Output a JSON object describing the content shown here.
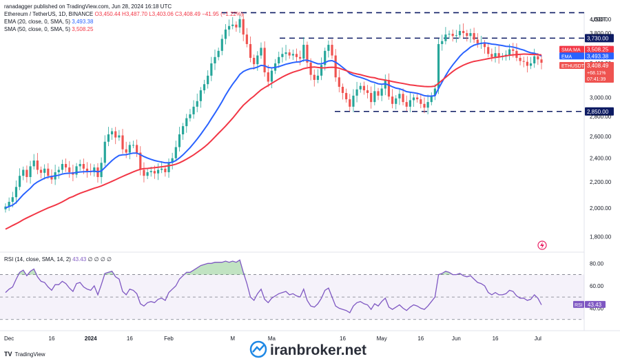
{
  "header": {
    "published": "ranadagger published on TradingView.com, Jun 28, 2024 16:18 UTC",
    "symbol": "Ethereum / TetherUS, 1D, BINANCE",
    "ohlc": "O3,450.44 H3,487.70 L3,403.06 C3,408.49 −41.95 (−1.22%)",
    "ema_label": "EMA (20, close, 0, SMA, 5)",
    "ema_value": "3,493.38",
    "sma_label": "SMA (50, close, 0, SMA, 5)",
    "sma_value": "3,508.25",
    "rsi_label": "RSI (14, close, SMA, 14, 2)",
    "rsi_value": "43.43",
    "rsi_extra": "∅ ∅ ∅ ∅"
  },
  "footer": {
    "tradingview": "TradingView",
    "watermark": "iranbroker.net"
  },
  "colors": {
    "up": "#26a69a",
    "down": "#ef5350",
    "ema": "#2962ff",
    "sma": "#f23645",
    "rsi": "#7e57c2",
    "level_line": "#0d1b63",
    "watermark_blue": "#1e88e5"
  },
  "chart_data": [
    {
      "type": "line",
      "title": "Ethereum / TetherUS, 1D, BINANCE",
      "currency": "USDT",
      "ylim": [
        1700,
        4100
      ],
      "y_scale": "log",
      "y_ticks": [
        "4,000.00",
        "3,800.00",
        "3,600.00",
        "3,400.00",
        "3,200.00",
        "3,000.00",
        "2,800.00",
        "2,600.00",
        "2,400.00",
        "2,200.00",
        "2,000.00",
        "1,800.00"
      ],
      "x_ticks": [
        "Dec",
        "16",
        "2024",
        "16",
        "Feb",
        "M",
        "Ma",
        "16",
        "May",
        "16",
        "Jun",
        "16",
        "Jul"
      ],
      "levels": [
        {
          "value": 4095,
          "label": ""
        },
        {
          "value": 3730,
          "label": "3,730.00"
        },
        {
          "value": 2850,
          "label": "2,850.00"
        }
      ],
      "price_labels": [
        {
          "name": "SMA:MA",
          "value": "3,508.25"
        },
        {
          "name": "EMA",
          "value": "3,493.38"
        },
        {
          "name": "ETHUSDT",
          "value": "3,408.49",
          "change": "+68.11%",
          "countdown": "07:41:39"
        }
      ],
      "series": [
        {
          "name": "ETHUSDT",
          "values": [
            2010,
            2045,
            2080,
            2160,
            2250,
            2300,
            2240,
            2330,
            2380,
            2300,
            2275,
            2310,
            2250,
            2220,
            2280,
            2300,
            2350,
            2320,
            2280,
            2260,
            2330,
            2350,
            2310,
            2290,
            2280,
            2320,
            2240,
            2360,
            2550,
            2620,
            2650,
            2590,
            2610,
            2480,
            2450,
            2520,
            2520,
            2450,
            2300,
            2250,
            2280,
            2290,
            2270,
            2300,
            2310,
            2280,
            2360,
            2400,
            2500,
            2620,
            2700,
            2780,
            2820,
            2900,
            2960,
            3080,
            3150,
            3250,
            3400,
            3480,
            3560,
            3720,
            3850,
            3900,
            3920,
            3880,
            4000,
            3780,
            3650,
            3470,
            3390,
            3500,
            3600,
            3290,
            3180,
            3310,
            3400,
            3480,
            3520,
            3540,
            3500,
            3520,
            3480,
            3460,
            3640,
            3410,
            3260,
            3200,
            3250,
            3380,
            3560,
            3640,
            3500,
            3230,
            3120,
            3050,
            2980,
            2900,
            3020,
            3090,
            3130,
            3080,
            3050,
            2950,
            3070,
            3020,
            3100,
            3200,
            3010,
            2930,
            2990,
            3040,
            2950,
            2900,
            2970,
            3000,
            2980,
            2930,
            2890,
            2950,
            3020,
            3100,
            3650,
            3690,
            3780,
            3790,
            3760,
            3770,
            3830,
            3800,
            3760,
            3800,
            3710,
            3660,
            3660,
            3610,
            3520,
            3480,
            3530,
            3480,
            3490,
            3510,
            3580,
            3560,
            3470,
            3430,
            3420,
            3370,
            3400,
            3490,
            3450,
            3408
          ]
        },
        {
          "name": "EMA (20)",
          "values": [
            2000,
            2010,
            2020,
            2040,
            2070,
            2100,
            2125,
            2150,
            2180,
            2200,
            2215,
            2230,
            2240,
            2245,
            2250,
            2255,
            2265,
            2270,
            2272,
            2273,
            2278,
            2282,
            2284,
            2285,
            2286,
            2289,
            2284,
            2290,
            2320,
            2350,
            2380,
            2405,
            2425,
            2430,
            2432,
            2440,
            2446,
            2446,
            2432,
            2415,
            2402,
            2390,
            2380,
            2373,
            2367,
            2360,
            2360,
            2365,
            2380,
            2403,
            2430,
            2462,
            2495,
            2535,
            2575,
            2620,
            2668,
            2718,
            2775,
            2832,
            2890,
            2955,
            3025,
            3090,
            3150,
            3205,
            3265,
            3300,
            3320,
            3335,
            3340,
            3355,
            3375,
            3370,
            3350,
            3345,
            3350,
            3360,
            3375,
            3390,
            3400,
            3410,
            3417,
            3420,
            3440,
            3440,
            3428,
            3410,
            3395,
            3395,
            3410,
            3430,
            3435,
            3415,
            3385,
            3350,
            3315,
            3275,
            3255,
            3240,
            3230,
            3215,
            3200,
            3180,
            3170,
            3155,
            3150,
            3155,
            3140,
            3120,
            3105,
            3097,
            3083,
            3065,
            3058,
            3053,
            3046,
            3035,
            3020,
            3015,
            3015,
            3020,
            3100,
            3175,
            3250,
            3320,
            3380,
            3435,
            3490,
            3535,
            3570,
            3610,
            3635,
            3650,
            3660,
            3665,
            3660,
            3650,
            3645,
            3637,
            3630,
            3620,
            3617,
            3610,
            3598,
            3583,
            3570,
            3550,
            3535,
            3528,
            3515,
            3493
          ]
        },
        {
          "name": "SMA (50)",
          "values": [
            1850,
            1862,
            1875,
            1887,
            1900,
            1915,
            1928,
            1940,
            1952,
            1964,
            1976,
            1988,
            2000,
            2010,
            2020,
            2032,
            2045,
            2060,
            2075,
            2085,
            2098,
            2110,
            2120,
            2130,
            2140,
            2150,
            2158,
            2168,
            2180,
            2192,
            2205,
            2218,
            2232,
            2245,
            2258,
            2270,
            2283,
            2295,
            2305,
            2310,
            2312,
            2315,
            2318,
            2322,
            2326,
            2330,
            2335,
            2340,
            2348,
            2360,
            2375,
            2392,
            2410,
            2430,
            2452,
            2475,
            2500,
            2528,
            2560,
            2595,
            2630,
            2665,
            2700,
            2740,
            2780,
            2825,
            2872,
            2915,
            2950,
            2985,
            3015,
            3050,
            3085,
            3110,
            3135,
            3160,
            3185,
            3210,
            3235,
            3255,
            3275,
            3292,
            3305,
            3318,
            3335,
            3345,
            3352,
            3355,
            3350,
            3345,
            3345,
            3350,
            3352,
            3350,
            3340,
            3325,
            3310,
            3295,
            3280,
            3270,
            3262,
            3250,
            3240,
            3230,
            3225,
            3212,
            3205,
            3198,
            3190,
            3180,
            3172,
            3165,
            3158,
            3150,
            3142,
            3138,
            3132,
            3128,
            3124,
            3122,
            3123,
            3128,
            3160,
            3195,
            3230,
            3265,
            3300,
            3330,
            3355,
            3378,
            3397,
            3412,
            3425,
            3433,
            3442,
            3450,
            3460,
            3468,
            3475,
            3480,
            3488,
            3495,
            3503,
            3508,
            3512,
            3515,
            3518,
            3517,
            3514,
            3513,
            3510,
            3508
          ]
        }
      ]
    },
    {
      "type": "line",
      "title": "RSI (14, close, SMA, 14, 2)",
      "ylim": [
        20,
        90
      ],
      "y_ticks": [
        "80.00",
        "60.00",
        "40.00"
      ],
      "bands": [
        70,
        50,
        30
      ],
      "last_value": "43.43",
      "series": [
        {
          "name": "RSI",
          "values": [
            54,
            57,
            59,
            66,
            72,
            74,
            69,
            73,
            75,
            68,
            64,
            63,
            59,
            56,
            61,
            61,
            64,
            62,
            58,
            55,
            62,
            63,
            59,
            57,
            56,
            60,
            52,
            61,
            71,
            72,
            73,
            68,
            66,
            55,
            52,
            57,
            56,
            53,
            44,
            42,
            45,
            46,
            45,
            48,
            49,
            47,
            54,
            57,
            60,
            66,
            69,
            72,
            72,
            74,
            76,
            78,
            79,
            80,
            80,
            81,
            81,
            81,
            82,
            81,
            82,
            81,
            83,
            72,
            62,
            50,
            47,
            53,
            57,
            48,
            45,
            49,
            51,
            53,
            54,
            55,
            52,
            53,
            51,
            50,
            57,
            47,
            42,
            41,
            44,
            49,
            56,
            58,
            50,
            42,
            40,
            39,
            38,
            36,
            42,
            45,
            46,
            44,
            43,
            39,
            44,
            42,
            46,
            49,
            41,
            39,
            41,
            43,
            40,
            38,
            41,
            43,
            42,
            40,
            39,
            42,
            46,
            50,
            70,
            71,
            73,
            72,
            70,
            70,
            71,
            69,
            68,
            69,
            66,
            63,
            62,
            60,
            54,
            52,
            54,
            52,
            52,
            53,
            56,
            55,
            51,
            49,
            49,
            47,
            48,
            52,
            49,
            43
          ]
        },
        {
          "name": "RSI SMA",
          "values": []
        }
      ]
    }
  ]
}
